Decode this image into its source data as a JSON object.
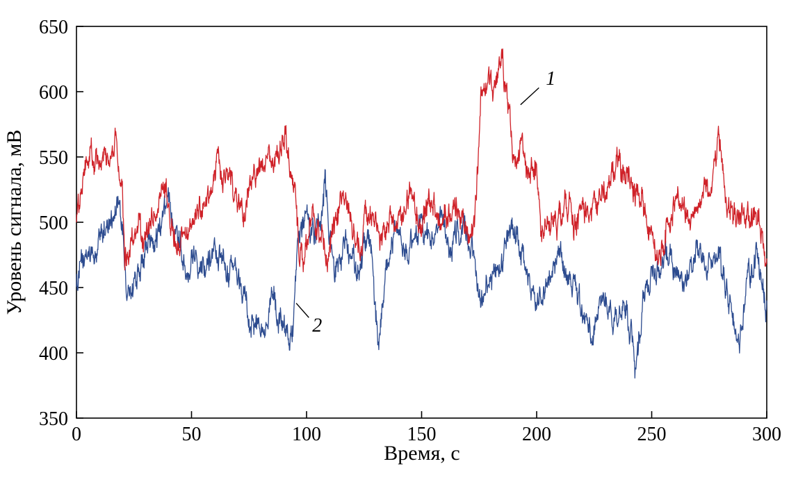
{
  "chart_data": {
    "type": "line",
    "title": "",
    "xlabel": "Время, с",
    "ylabel": "Уровень сигнала, мВ",
    "xlim": [
      0,
      300
    ],
    "ylim": [
      350,
      650
    ],
    "xticks": [
      0,
      50,
      100,
      150,
      200,
      250,
      300
    ],
    "yticks": [
      350,
      400,
      450,
      500,
      550,
      600,
      650
    ],
    "grid": false,
    "legend": "none",
    "frame_color": "#000000",
    "series": [
      {
        "name": "1",
        "color": "#cf2128",
        "keypoints": [
          [
            0,
            505
          ],
          [
            2,
            520
          ],
          [
            4,
            540
          ],
          [
            6,
            552
          ],
          [
            8,
            545
          ],
          [
            10,
            540
          ],
          [
            12,
            548
          ],
          [
            14,
            538
          ],
          [
            16,
            545
          ],
          [
            17,
            572
          ],
          [
            18,
            550
          ],
          [
            20,
            520
          ],
          [
            21,
            468
          ],
          [
            23,
            478
          ],
          [
            25,
            495
          ],
          [
            27,
            500
          ],
          [
            29,
            485
          ],
          [
            31,
            490
          ],
          [
            33,
            505
          ],
          [
            35,
            500
          ],
          [
            37,
            528
          ],
          [
            39,
            520
          ],
          [
            41,
            498
          ],
          [
            43,
            490
          ],
          [
            45,
            482
          ],
          [
            47,
            495
          ],
          [
            49,
            488
          ],
          [
            51,
            500
          ],
          [
            53,
            505
          ],
          [
            55,
            510
          ],
          [
            57,
            522
          ],
          [
            59,
            535
          ],
          [
            61,
            545
          ],
          [
            63,
            540
          ],
          [
            65,
            532
          ],
          [
            67,
            528
          ],
          [
            69,
            518
          ],
          [
            71,
            508
          ],
          [
            73,
            512
          ],
          [
            75,
            525
          ],
          [
            77,
            535
          ],
          [
            79,
            540
          ],
          [
            81,
            545
          ],
          [
            83,
            548
          ],
          [
            85,
            552
          ],
          [
            87,
            545
          ],
          [
            89,
            558
          ],
          [
            91,
            570
          ],
          [
            93,
            540
          ],
          [
            95,
            520
          ],
          [
            97,
            478
          ],
          [
            99,
            470
          ],
          [
            101,
            492
          ],
          [
            103,
            505
          ],
          [
            105,
            500
          ],
          [
            107,
            488
          ],
          [
            109,
            478
          ],
          [
            111,
            488
          ],
          [
            113,
            500
          ],
          [
            115,
            515
          ],
          [
            117,
            520
          ],
          [
            119,
            505
          ],
          [
            121,
            495
          ],
          [
            123,
            488
          ],
          [
            125,
            492
          ],
          [
            127,
            500
          ],
          [
            129,
            505
          ],
          [
            131,
            495
          ],
          [
            133,
            488
          ],
          [
            135,
            495
          ],
          [
            137,
            505
          ],
          [
            139,
            500
          ],
          [
            141,
            498
          ],
          [
            143,
            508
          ],
          [
            145,
            515
          ],
          [
            147,
            505
          ],
          [
            149,
            495
          ],
          [
            151,
            505
          ],
          [
            153,
            518
          ],
          [
            155,
            515
          ],
          [
            157,
            505
          ],
          [
            159,
            498
          ],
          [
            161,
            505
          ],
          [
            163,
            512
          ],
          [
            165,
            515
          ],
          [
            167,
            502
          ],
          [
            169,
            495
          ],
          [
            171,
            488
          ],
          [
            173,
            510
          ],
          [
            175,
            560
          ],
          [
            176,
            598
          ],
          [
            178,
            602
          ],
          [
            180,
            605
          ],
          [
            182,
            598
          ],
          [
            184,
            610
          ],
          [
            185,
            622
          ],
          [
            186,
            608
          ],
          [
            188,
            585
          ],
          [
            190,
            548
          ],
          [
            192,
            555
          ],
          [
            194,
            562
          ],
          [
            196,
            532
          ],
          [
            198,
            540
          ],
          [
            200,
            548
          ],
          [
            202,
            492
          ],
          [
            204,
            498
          ],
          [
            206,
            502
          ],
          [
            208,
            505
          ],
          [
            210,
            508
          ],
          [
            212,
            512
          ],
          [
            214,
            515
          ],
          [
            216,
            505
          ],
          [
            218,
            500
          ],
          [
            220,
            505
          ],
          [
            222,
            510
          ],
          [
            224,
            505
          ],
          [
            226,
            512
          ],
          [
            228,
            520
          ],
          [
            230,
            528
          ],
          [
            232,
            535
          ],
          [
            234,
            540
          ],
          [
            236,
            545
          ],
          [
            238,
            542
          ],
          [
            240,
            535
          ],
          [
            242,
            528
          ],
          [
            244,
            520
          ],
          [
            246,
            512
          ],
          [
            248,
            498
          ],
          [
            250,
            488
          ],
          [
            252,
            470
          ],
          [
            254,
            478
          ],
          [
            256,
            492
          ],
          [
            258,
            505
          ],
          [
            260,
            512
          ],
          [
            262,
            515
          ],
          [
            264,
            508
          ],
          [
            266,
            502
          ],
          [
            268,
            505
          ],
          [
            270,
            508
          ],
          [
            272,
            515
          ],
          [
            274,
            528
          ],
          [
            276,
            532
          ],
          [
            278,
            545
          ],
          [
            279,
            578
          ],
          [
            280,
            552
          ],
          [
            282,
            520
          ],
          [
            284,
            510
          ],
          [
            286,
            505
          ],
          [
            288,
            498
          ],
          [
            290,
            502
          ],
          [
            292,
            505
          ],
          [
            294,
            500
          ],
          [
            296,
            505
          ],
          [
            298,
            495
          ],
          [
            300,
            470
          ]
        ]
      },
      {
        "name": "2",
        "color": "#2c4b8f",
        "keypoints": [
          [
            0,
            455
          ],
          [
            2,
            465
          ],
          [
            4,
            472
          ],
          [
            6,
            478
          ],
          [
            8,
            470
          ],
          [
            10,
            488
          ],
          [
            12,
            495
          ],
          [
            14,
            500
          ],
          [
            16,
            508
          ],
          [
            18,
            512
          ],
          [
            20,
            495
          ],
          [
            22,
            438
          ],
          [
            24,
            448
          ],
          [
            26,
            458
          ],
          [
            28,
            465
          ],
          [
            30,
            478
          ],
          [
            32,
            485
          ],
          [
            34,
            490
          ],
          [
            36,
            495
          ],
          [
            38,
            505
          ],
          [
            40,
            512
          ],
          [
            42,
            505
          ],
          [
            44,
            495
          ],
          [
            46,
            478
          ],
          [
            48,
            465
          ],
          [
            50,
            470
          ],
          [
            52,
            475
          ],
          [
            54,
            472
          ],
          [
            56,
            468
          ],
          [
            58,
            475
          ],
          [
            60,
            480
          ],
          [
            62,
            472
          ],
          [
            64,
            465
          ],
          [
            66,
            460
          ],
          [
            68,
            462
          ],
          [
            70,
            455
          ],
          [
            72,
            448
          ],
          [
            74,
            432
          ],
          [
            76,
            425
          ],
          [
            78,
            420
          ],
          [
            80,
            418
          ],
          [
            82,
            428
          ],
          [
            84,
            442
          ],
          [
            86,
            438
          ],
          [
            88,
            425
          ],
          [
            90,
            415
          ],
          [
            92,
            410
          ],
          [
            94,
            412
          ],
          [
            96,
            468
          ],
          [
            98,
            495
          ],
          [
            100,
            512
          ],
          [
            102,
            495
          ],
          [
            104,
            488
          ],
          [
            106,
            510
          ],
          [
            108,
            532
          ],
          [
            110,
            495
          ],
          [
            112,
            462
          ],
          [
            114,
            470
          ],
          [
            116,
            478
          ],
          [
            118,
            480
          ],
          [
            120,
            470
          ],
          [
            122,
            465
          ],
          [
            124,
            472
          ],
          [
            126,
            488
          ],
          [
            128,
            478
          ],
          [
            130,
            430
          ],
          [
            131,
            408
          ],
          [
            132,
            420
          ],
          [
            134,
            455
          ],
          [
            136,
            475
          ],
          [
            138,
            485
          ],
          [
            140,
            490
          ],
          [
            142,
            485
          ],
          [
            144,
            480
          ],
          [
            146,
            485
          ],
          [
            148,
            495
          ],
          [
            150,
            498
          ],
          [
            152,
            488
          ],
          [
            154,
            480
          ],
          [
            156,
            495
          ],
          [
            158,
            505
          ],
          [
            160,
            490
          ],
          [
            162,
            480
          ],
          [
            164,
            485
          ],
          [
            166,
            490
          ],
          [
            168,
            495
          ],
          [
            170,
            488
          ],
          [
            172,
            482
          ],
          [
            174,
            455
          ],
          [
            176,
            440
          ],
          [
            178,
            448
          ],
          [
            180,
            455
          ],
          [
            182,
            460
          ],
          [
            184,
            465
          ],
          [
            186,
            472
          ],
          [
            188,
            488
          ],
          [
            190,
            498
          ],
          [
            192,
            485
          ],
          [
            194,
            475
          ],
          [
            196,
            460
          ],
          [
            198,
            448
          ],
          [
            200,
            440
          ],
          [
            202,
            445
          ],
          [
            204,
            450
          ],
          [
            206,
            460
          ],
          [
            208,
            470
          ],
          [
            210,
            475
          ],
          [
            212,
            465
          ],
          [
            214,
            458
          ],
          [
            216,
            448
          ],
          [
            218,
            440
          ],
          [
            220,
            430
          ],
          [
            222,
            420
          ],
          [
            224,
            415
          ],
          [
            226,
            425
          ],
          [
            228,
            435
          ],
          [
            230,
            440
          ],
          [
            232,
            430
          ],
          [
            234,
            425
          ],
          [
            236,
            432
          ],
          [
            238,
            440
          ],
          [
            240,
            420
          ],
          [
            242,
            400
          ],
          [
            243,
            385
          ],
          [
            244,
            405
          ],
          [
            246,
            435
          ],
          [
            248,
            450
          ],
          [
            250,
            462
          ],
          [
            252,
            468
          ],
          [
            254,
            470
          ],
          [
            256,
            472
          ],
          [
            258,
            475
          ],
          [
            260,
            465
          ],
          [
            262,
            455
          ],
          [
            264,
            460
          ],
          [
            266,
            465
          ],
          [
            268,
            472
          ],
          [
            270,
            478
          ],
          [
            272,
            470
          ],
          [
            274,
            465
          ],
          [
            276,
            468
          ],
          [
            278,
            470
          ],
          [
            280,
            468
          ],
          [
            282,
            455
          ],
          [
            284,
            442
          ],
          [
            286,
            425
          ],
          [
            288,
            410
          ],
          [
            290,
            430
          ],
          [
            292,
            458
          ],
          [
            294,
            468
          ],
          [
            296,
            470
          ],
          [
            298,
            450
          ],
          [
            300,
            430
          ]
        ]
      }
    ],
    "annotations": [
      {
        "text": "1",
        "x": 204,
        "y": 610,
        "leader": [
          [
            193,
            590
          ],
          [
            201,
            603
          ]
        ]
      },
      {
        "text": "2",
        "x": 102.5,
        "y": 421,
        "leader": [
          [
            95.5,
            438
          ],
          [
            101,
            427
          ]
        ]
      }
    ]
  }
}
